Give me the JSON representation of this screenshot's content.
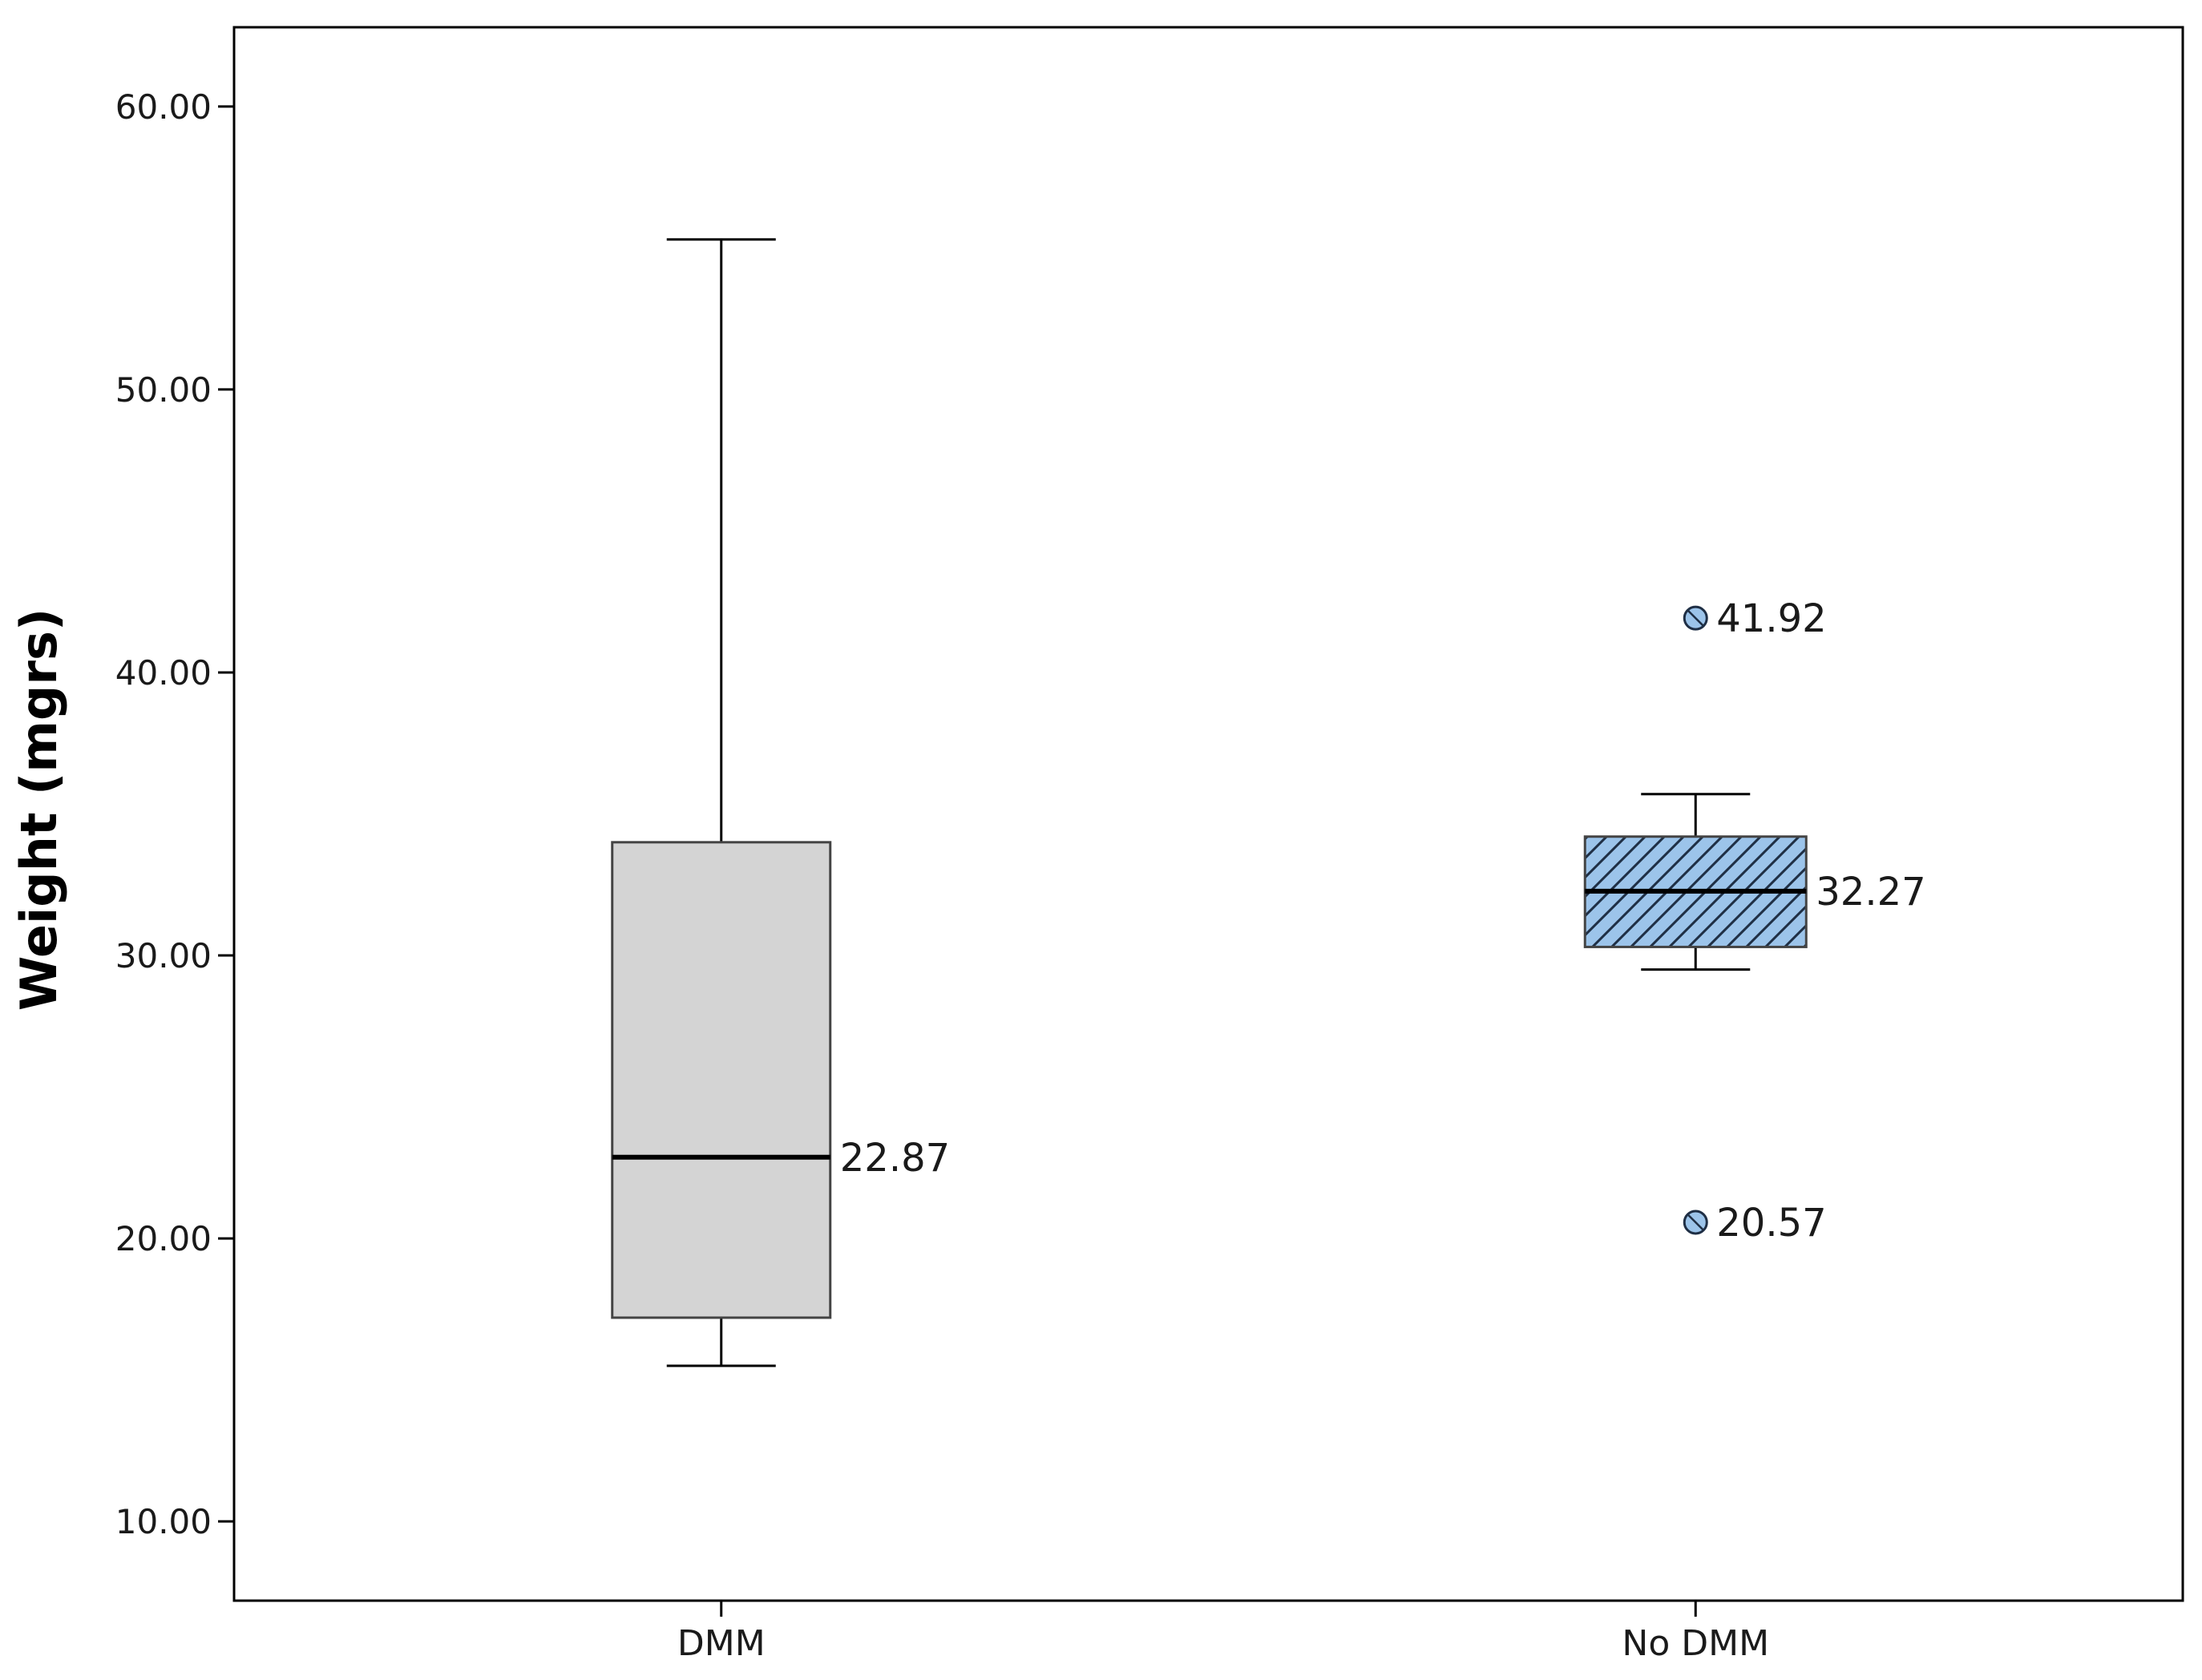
{
  "chart_data": {
    "type": "box",
    "title": "",
    "xlabel": "",
    "ylabel": "Weight (mgrs)",
    "ylim": [
      7.2,
      62.8
    ],
    "yticks": [
      10,
      20,
      30,
      40,
      50,
      60
    ],
    "ytick_labels": [
      "10.00",
      "20.00",
      "30.00",
      "40.00",
      "50.00",
      "60.00"
    ],
    "categories": [
      "DMM",
      "No DMM"
    ],
    "boxes": [
      {
        "category": "DMM",
        "whisker_low": 15.5,
        "q1": 17.2,
        "median": 22.87,
        "q3": 34.0,
        "whisker_high": 55.3,
        "median_label": "22.87",
        "fill": "#d4d4d4",
        "pattern": "none",
        "outliers": []
      },
      {
        "category": "No DMM",
        "whisker_low": 29.5,
        "q1": 30.3,
        "median": 32.27,
        "q3": 34.2,
        "whisker_high": 35.7,
        "median_label": "32.27",
        "fill": "#9cc4ea",
        "pattern": "diagonal-hatch",
        "outliers": [
          {
            "value": 41.92,
            "label": "41.92"
          },
          {
            "value": 20.57,
            "label": "20.57"
          }
        ]
      }
    ],
    "grid": false,
    "legend": "none"
  }
}
